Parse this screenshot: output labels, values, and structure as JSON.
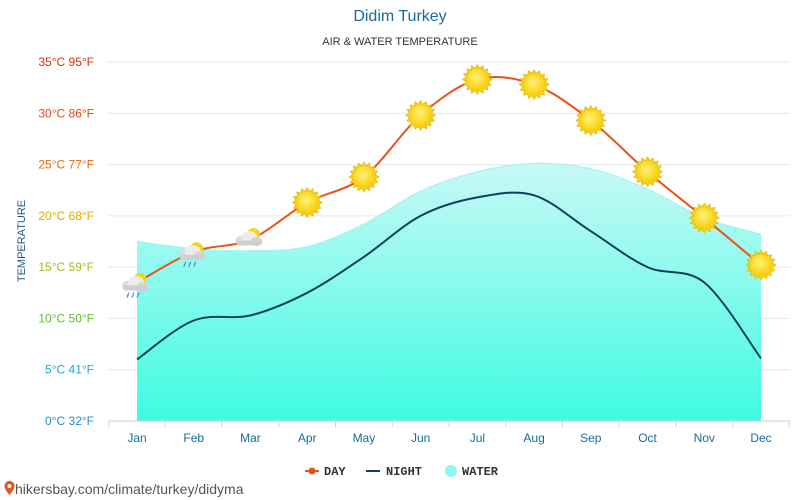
{
  "header": {
    "title": "Didim Turkey",
    "subtitle": "AIR & WATER TEMPERATURE"
  },
  "watermark": "hikersbay.com/climate/turkey/didyma",
  "chart_data": {
    "type": "line",
    "categories": [
      "Jan",
      "Feb",
      "Mar",
      "Apr",
      "May",
      "Jun",
      "Jul",
      "Aug",
      "Sep",
      "Oct",
      "Nov",
      "Dec"
    ],
    "ylabel": "TEMPERATURE",
    "ylim": [
      0,
      35
    ],
    "ytick_values": [
      0,
      5,
      10,
      15,
      20,
      25,
      30,
      35
    ],
    "ytick_labels": [
      "0°C 32°F",
      "5°C 41°F",
      "10°C 50°F",
      "15°C 59°F",
      "20°C 68°F",
      "25°C 77°F",
      "30°C 86°F",
      "35°C 95°F"
    ],
    "ytick_colors": [
      "#1a8fd0",
      "#19a8d8",
      "#5ec02b",
      "#9ac21c",
      "#e0a800",
      "#e86a10",
      "#e04a10",
      "#d8300e"
    ],
    "grid": true,
    "legend_position": "bottom",
    "series": [
      {
        "name": "DAY",
        "color": "#e8531a",
        "values": [
          13.5,
          16.5,
          17.7,
          21.3,
          23.8,
          29.8,
          33.3,
          32.8,
          29.3,
          24.3,
          19.8,
          15.2
        ]
      },
      {
        "name": "NIGHT",
        "color": "#123f5c",
        "values": [
          6.0,
          9.8,
          10.3,
          12.5,
          16.0,
          20.0,
          21.8,
          22.0,
          18.5,
          15.0,
          13.5,
          6.1
        ]
      },
      {
        "name": "WATER",
        "color": "#5ef4e8",
        "values": [
          17.5,
          16.8,
          16.6,
          17.0,
          19.2,
          22.4,
          24.3,
          25.1,
          24.6,
          22.6,
          19.8,
          18.2
        ]
      }
    ],
    "day_icons": [
      "cloudy-rain-icon",
      "cloudy-rain-icon",
      "partly-cloudy-icon",
      "sun-icon",
      "sun-icon",
      "sun-icon",
      "sun-icon",
      "sun-icon",
      "sun-icon",
      "sun-icon",
      "sun-icon",
      "sun-icon"
    ]
  }
}
